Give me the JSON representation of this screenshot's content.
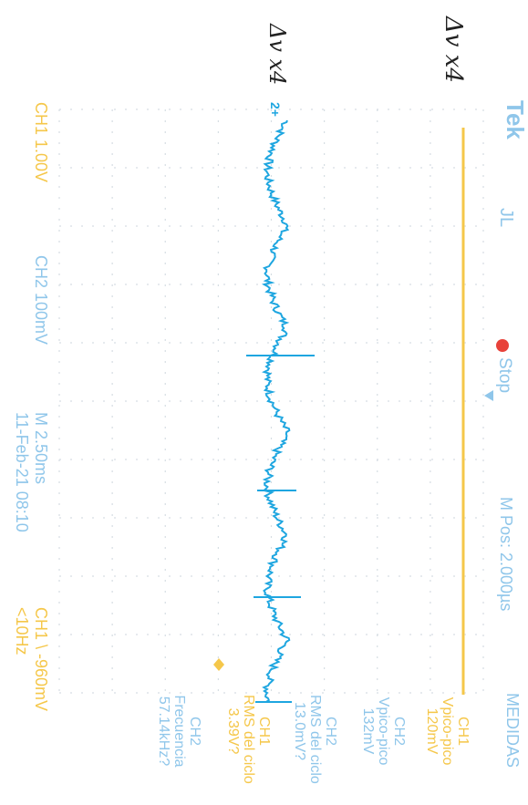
{
  "header": {
    "brand": "Tek",
    "trigger_symbol": "JL",
    "run_state": "Stop",
    "horizontal_position": "M Pos: 2.000µs"
  },
  "footer": {
    "ch1_scale": "CH1  1.00V",
    "ch2_scale": "CH2  100mV",
    "timebase": "M 2.50ms",
    "datetime": "11-Feb-21 08:10",
    "trigger": "CH1 \\ -960mV",
    "trigger_freq": "<10Hz"
  },
  "markers": {
    "ch2_marker": "2+"
  },
  "measures": {
    "title": "MEDIDAS",
    "items": [
      {
        "channel": "CH1",
        "label": "Vpico-pico",
        "value": "120mV",
        "color": "#f5c74a"
      },
      {
        "channel": "CH2",
        "label": "Vpico-pico",
        "value": "132mV",
        "color": "#8fc6ea"
      },
      {
        "channel": "CH2",
        "label": "RMS del ciclo",
        "value": "13.0mV?",
        "color": "#8fc6ea"
      },
      {
        "channel": "CH1",
        "label": "RMS del ciclo",
        "value": "3.39V?",
        "color": "#f5c74a"
      },
      {
        "channel": "CH2",
        "label": "Frecuencia",
        "value": "57.14kHz?",
        "color": "#8fc6ea"
      }
    ]
  },
  "handwriting": {
    "note_top": "Δv x4",
    "note_left": "Δv x4"
  },
  "colors": {
    "ch1": "#f5c74a",
    "ch2": "#1ea6e0",
    "label_blue": "#8fc6ea",
    "stop_red": "#e8423a",
    "grid": "#cfd6dc"
  }
}
